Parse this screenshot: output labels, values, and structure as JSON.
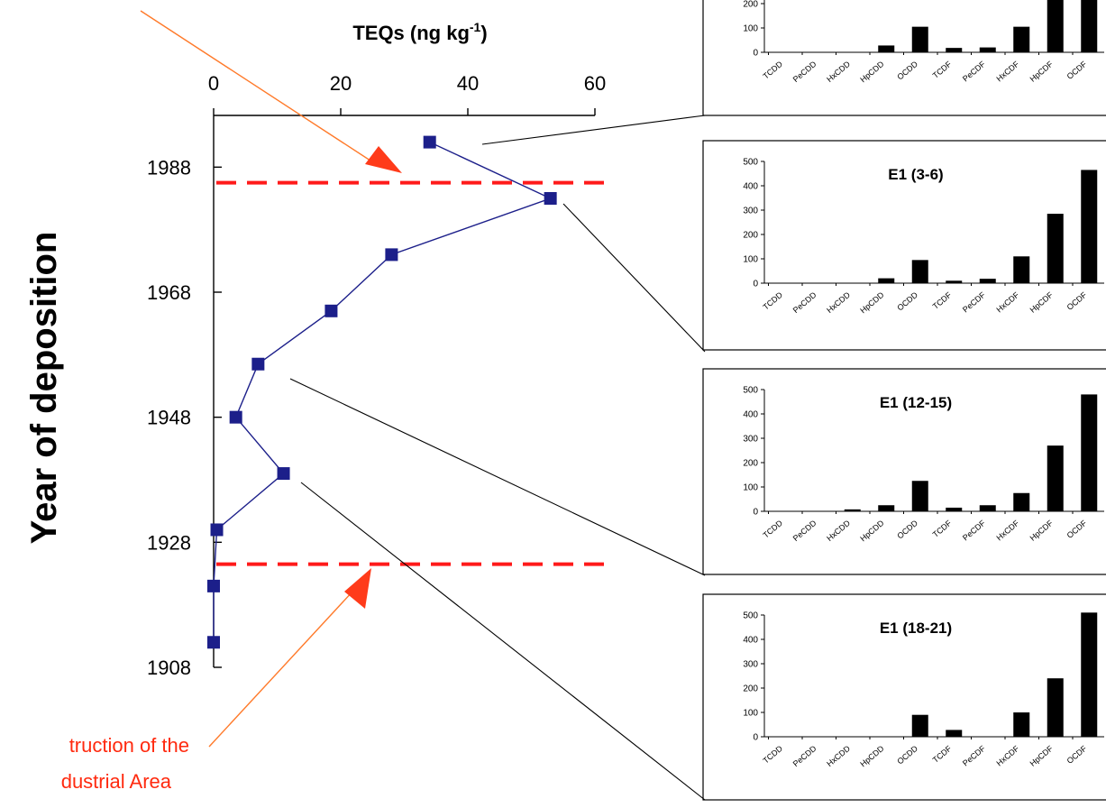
{
  "chart_data": [
    {
      "type": "line",
      "title": "",
      "xlabel": "TEQs (ng kg⁻¹)",
      "xlabel_main": "TEQs (ng kg",
      "xlabel_sup": "-1",
      "xlabel_close": ")",
      "ylabel": "Year of deposition",
      "xlim": [
        0,
        60
      ],
      "ylim": [
        1908,
        1998
      ],
      "x_axis_position": "top",
      "x_ticks": [
        "0",
        "20",
        "40",
        "60"
      ],
      "y_ticks": [
        "1908",
        "1928",
        "1948",
        "1968",
        "1988"
      ],
      "series": [
        {
          "color": "#1c1f8a",
          "marker": "square",
          "points": [
            {
              "teq": 34,
              "year": 1992
            },
            {
              "teq": 53,
              "year": 1983
            },
            {
              "teq": 28,
              "year": 1974
            },
            {
              "teq": 18.5,
              "year": 1965
            },
            {
              "teq": 7,
              "year": 1956.5
            },
            {
              "teq": 3.5,
              "year": 1948
            },
            {
              "teq": 11,
              "year": 1939
            },
            {
              "teq": 0.5,
              "year": 1930
            },
            {
              "teq": 0,
              "year": 1921
            },
            {
              "teq": 0,
              "year": 1912
            }
          ]
        }
      ],
      "reference_lines": [
        {
          "year": 1985.5,
          "style": "dashed",
          "color": "#ff1a1a"
        },
        {
          "year": 1924.5,
          "style": "dashed",
          "color": "#ff1a1a"
        }
      ],
      "annotations": [
        {
          "lines": [
            "truction of the",
            "dustrial Area"
          ],
          "color": "#ff2a0f"
        }
      ]
    },
    {
      "type": "bar",
      "title": "",
      "partial": true,
      "categories": [
        "TCDD",
        "PeCDD",
        "HxCDD",
        "HpCDD",
        "OCDD",
        "TCDF",
        "PeCDF",
        "HxCDF",
        "HpCDF",
        "OCDF"
      ],
      "values": [
        0,
        0,
        0,
        28,
        105,
        18,
        20,
        105,
        300,
        300
      ],
      "y_ticks_visible": [
        "200",
        "100",
        "0"
      ]
    },
    {
      "type": "bar",
      "title": "E1 (3-6)",
      "categories": [
        "TCDD",
        "PeCDD",
        "HxCDD",
        "HpCDD",
        "OCDD",
        "TCDF",
        "PeCDF",
        "HxCDF",
        "HpCDF",
        "OCDF"
      ],
      "values": [
        0,
        0,
        0,
        20,
        95,
        10,
        18,
        110,
        285,
        465
      ],
      "ylim": [
        0,
        500
      ],
      "y_ticks": [
        "0",
        "100",
        "200",
        "300",
        "400",
        "500"
      ]
    },
    {
      "type": "bar",
      "title": "E1 (12-15)",
      "categories": [
        "TCDD",
        "PeCDD",
        "HxCDD",
        "HpCDD",
        "OCDD",
        "TCDF",
        "PeCDF",
        "HxCDF",
        "HpCDF",
        "OCDF"
      ],
      "values": [
        0,
        0,
        8,
        25,
        125,
        15,
        25,
        75,
        270,
        480
      ],
      "ylim": [
        0,
        500
      ],
      "y_ticks": [
        "0",
        "100",
        "200",
        "300",
        "400",
        "500"
      ]
    },
    {
      "type": "bar",
      "title": "E1 (18-21)",
      "categories": [
        "TCDD",
        "PeCDD",
        "HxCDD",
        "HpCDD",
        "OCDD",
        "TCDF",
        "PeCDF",
        "HxCDF",
        "HpCDF",
        "OCDF"
      ],
      "values": [
        0,
        0,
        0,
        0,
        90,
        28,
        0,
        100,
        240,
        510
      ],
      "ylim": [
        0,
        500
      ],
      "y_ticks": [
        "0",
        "100",
        "200",
        "300",
        "400",
        "500"
      ]
    }
  ]
}
